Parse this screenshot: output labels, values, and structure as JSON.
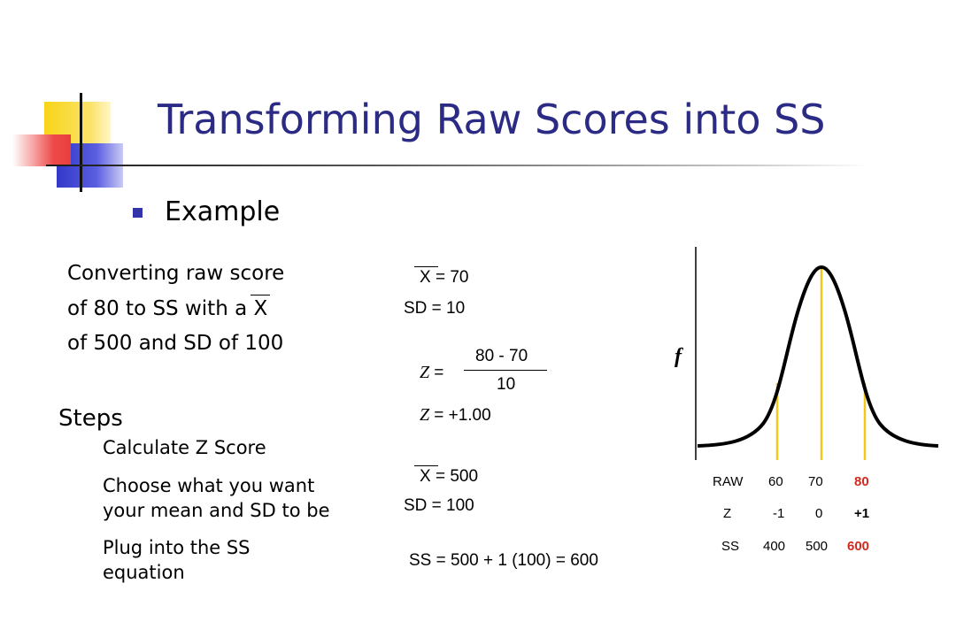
{
  "title": "Transforming Raw Scores into SS",
  "bullet_text": "Example",
  "conversion": {
    "line1": "Converting raw score",
    "line2_prefix": "of 80 to SS with a",
    "line2_symbol": "X",
    "line3": "of 500 and SD of 100"
  },
  "steps": {
    "heading": "Steps",
    "items": [
      "Calculate Z Score",
      "Choose what you want",
      "your mean and SD to be",
      "Plug into the SS",
      "equation"
    ]
  },
  "calc": {
    "mean1_symbol": "X",
    "mean1_value": "= 70",
    "sd1": "SD = 10",
    "z_letter": "Z",
    "z_equals": "=",
    "z_numerator": "80 - 70",
    "z_denominator": "10",
    "z_result_letter": "Z",
    "z_result": "= +1.00",
    "mean2_symbol": "X",
    "mean2_value": "= 500",
    "sd2": "SD = 100",
    "ss_equation": "SS = 500 + 1 (100) = 600"
  },
  "chart": {
    "y_axis_label": "f",
    "rows": [
      {
        "label": "RAW",
        "values": [
          "60",
          "70",
          "80"
        ]
      },
      {
        "label": "Z",
        "values": [
          "-1",
          "0",
          "+1"
        ]
      },
      {
        "label": "SS",
        "values": [
          "400",
          "500",
          "600"
        ]
      }
    ]
  },
  "colors": {
    "title": "#2b2b86",
    "highlight": "#d12a1f",
    "marker_lines": "#f2c81a",
    "logo_yellow": "#f7d417",
    "logo_blue": "#3338c8",
    "logo_red": "#ee4a4a"
  }
}
